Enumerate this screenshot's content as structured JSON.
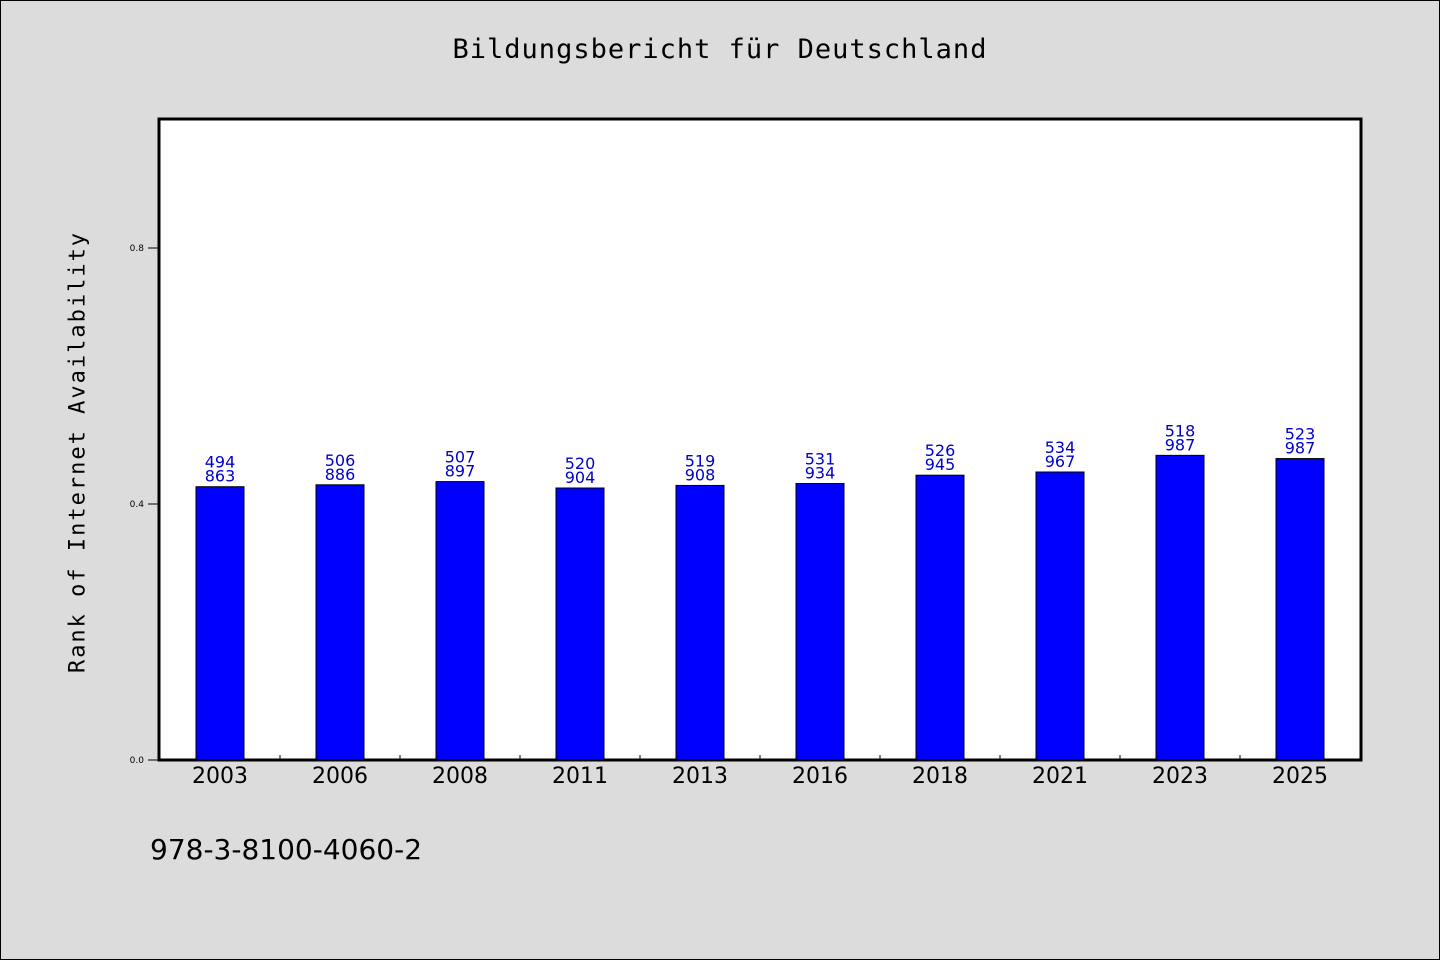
{
  "chart_data": {
    "type": "bar",
    "title": "Bildungsbericht für Deutschland",
    "ylabel": "Rank of Internet Availability",
    "xlabel": "",
    "ylim": [
      0,
      1.0
    ],
    "yticks": [
      "0.0",
      "0.4",
      "0.8"
    ],
    "yticks_values": [
      0.0,
      0.4,
      0.8
    ],
    "grid": false,
    "categories": [
      "2003",
      "2006",
      "2008",
      "2011",
      "2013",
      "2016",
      "2018",
      "2021",
      "2023",
      "2025"
    ],
    "values": [
      0.427,
      0.43,
      0.435,
      0.425,
      0.429,
      0.432,
      0.445,
      0.45,
      0.476,
      0.471
    ],
    "labels_top": [
      "494",
      "506",
      "507",
      "520",
      "519",
      "531",
      "526",
      "534",
      "518",
      "523"
    ],
    "labels_bottom": [
      "863",
      "886",
      "897",
      "904",
      "908",
      "934",
      "945",
      "967",
      "987",
      "987"
    ],
    "bar_color": "#0000ff",
    "label_color": "#0000cc"
  },
  "footer": {
    "isbn": "978-3-8100-4060-2"
  }
}
